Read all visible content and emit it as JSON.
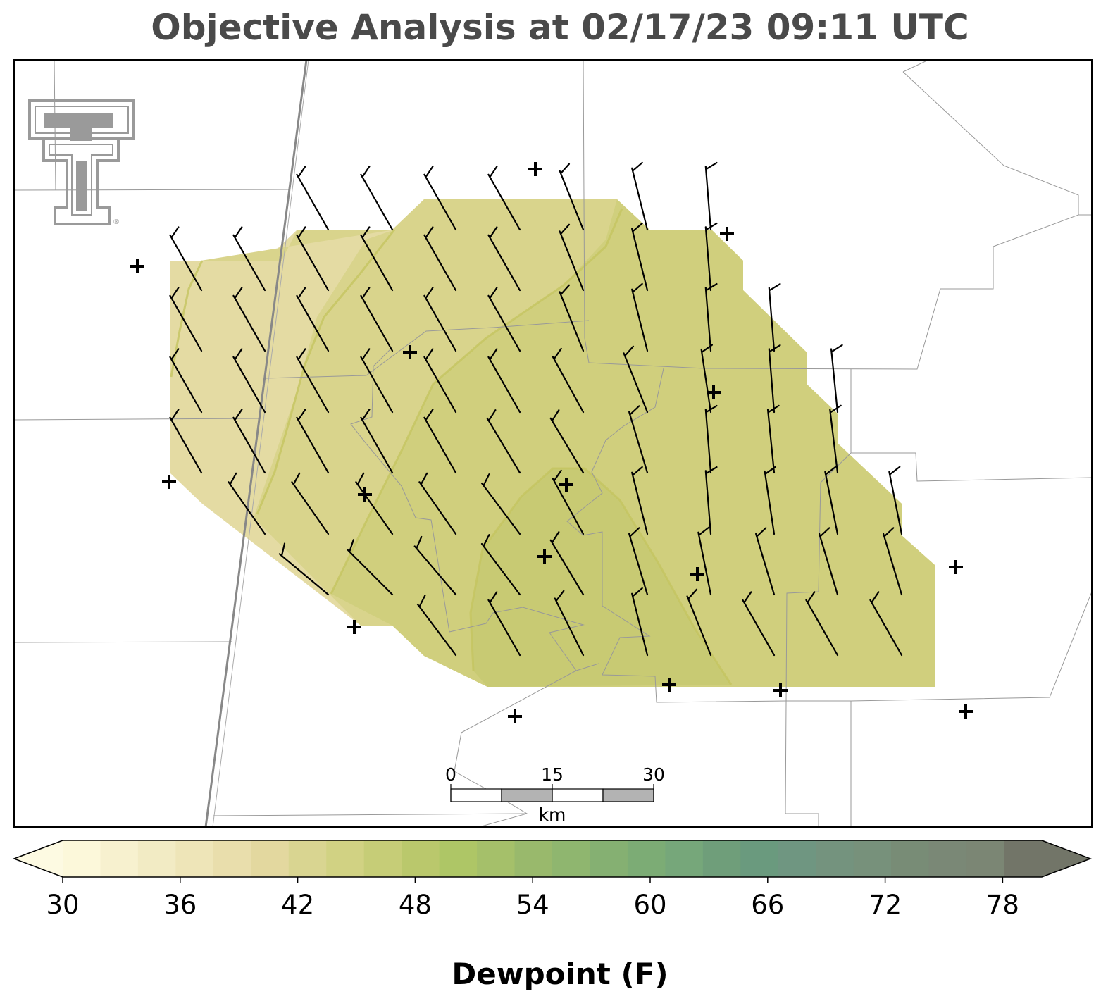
{
  "title": "Objective Analysis at 02/17/23 09:11 UTC",
  "colorbar": {
    "label": "Dewpoint (F)",
    "ticks": [
      "30",
      "36",
      "42",
      "48",
      "54",
      "60",
      "66",
      "72",
      "78"
    ],
    "min": 30,
    "max": 80,
    "colors": [
      "#fcf8da",
      "#f7f1cf",
      "#f2ebc4",
      "#eee5b8",
      "#e9deac",
      "#e3d89f",
      "#d9d591",
      "#d1d283",
      "#c6cd77",
      "#bac86c",
      "#aec666",
      "#a5c06a",
      "#99b96c",
      "#8fb66f",
      "#85b072",
      "#7cac75",
      "#76a77a",
      "#6f9e7a",
      "#6a9a7e",
      "#6f9681",
      "#74937e",
      "#77917b",
      "#788c76",
      "#7a8876",
      "#7b8674",
      "#727568"
    ]
  },
  "scale_bar": {
    "labels": [
      "0",
      "15",
      "30"
    ],
    "unit": "km"
  },
  "logo": {
    "name": "Texas Tech double-T logo",
    "text": "®"
  },
  "colors": {
    "title": "#4a4a4a",
    "field_low": "#e4dba3",
    "field_mid": "#d6d286",
    "field_high": "#cccd78",
    "contour": "#c4c460",
    "boundary": "#999999",
    "highway": "#888888"
  },
  "stations": [
    [
      195,
      378
    ],
    [
      760,
      240
    ],
    [
      1032,
      332
    ],
    [
      582,
      500
    ],
    [
      1013,
      557
    ],
    [
      240,
      684
    ],
    [
      518,
      702
    ],
    [
      804,
      688
    ],
    [
      773,
      790
    ],
    [
      990,
      815
    ],
    [
      503,
      890
    ],
    [
      1357,
      805
    ],
    [
      950,
      972
    ],
    [
      1108,
      980
    ],
    [
      731,
      1017
    ],
    [
      1371,
      1010
    ]
  ],
  "wind_barbs": [
    {
      "row_y": 326,
      "cols": [
        [
          466,
          -0.57
        ],
        [
          557,
          -0.57
        ],
        [
          647,
          -0.57
        ],
        [
          738,
          -0.57
        ],
        [
          828,
          -0.4
        ],
        [
          919,
          -0.25
        ],
        [
          1009,
          -0.08
        ]
      ]
    },
    {
      "row_y": 412,
      "cols": [
        [
          286,
          -0.57
        ],
        [
          376,
          -0.57
        ],
        [
          466,
          -0.57
        ],
        [
          557,
          -0.57
        ],
        [
          647,
          -0.57
        ],
        [
          738,
          -0.57
        ],
        [
          828,
          -0.4
        ],
        [
          919,
          -0.25
        ],
        [
          1009,
          -0.08
        ]
      ]
    },
    {
      "row_y": 498,
      "cols": [
        [
          286,
          -0.57
        ],
        [
          376,
          -0.57
        ],
        [
          466,
          -0.57
        ],
        [
          557,
          -0.57
        ],
        [
          647,
          -0.57
        ],
        [
          738,
          -0.57
        ],
        [
          828,
          -0.4
        ],
        [
          919,
          -0.25
        ],
        [
          1009,
          -0.08
        ],
        [
          1099,
          -0.08
        ]
      ]
    },
    {
      "row_y": 585,
      "cols": [
        [
          286,
          -0.57
        ],
        [
          376,
          -0.57
        ],
        [
          466,
          -0.57
        ],
        [
          557,
          -0.57
        ],
        [
          647,
          -0.57
        ],
        [
          738,
          -0.57
        ],
        [
          828,
          -0.55
        ],
        [
          919,
          -0.4
        ],
        [
          1009,
          -0.15
        ],
        [
          1099,
          -0.08
        ],
        [
          1189,
          -0.1
        ]
      ]
    },
    {
      "row_y": 671,
      "cols": [
        [
          286,
          -0.57
        ],
        [
          376,
          -0.57
        ],
        [
          466,
          -0.57
        ],
        [
          557,
          -0.57
        ],
        [
          647,
          -0.57
        ],
        [
          738,
          -0.6
        ],
        [
          828,
          -0.6
        ],
        [
          919,
          -0.3
        ],
        [
          1009,
          -0.08
        ],
        [
          1099,
          -0.1
        ],
        [
          1189,
          -0.12
        ]
      ]
    },
    {
      "row_y": 758,
      "cols": [
        [
          376,
          -0.7
        ],
        [
          466,
          -0.7
        ],
        [
          557,
          -0.7
        ],
        [
          647,
          -0.7
        ],
        [
          738,
          -0.75
        ],
        [
          828,
          -0.55
        ],
        [
          919,
          -0.25
        ],
        [
          1009,
          -0.08
        ],
        [
          1099,
          -0.15
        ],
        [
          1189,
          -0.2
        ],
        [
          1280,
          -0.2
        ]
      ]
    },
    {
      "row_y": 844,
      "cols": [
        [
          466,
          -1.2
        ],
        [
          557,
          -1.0
        ],
        [
          647,
          -0.85
        ],
        [
          738,
          -0.75
        ],
        [
          828,
          -0.6
        ],
        [
          919,
          -0.3
        ],
        [
          1009,
          -0.2
        ],
        [
          1099,
          -0.3
        ],
        [
          1189,
          -0.3
        ],
        [
          1280,
          -0.3
        ]
      ]
    },
    {
      "row_y": 930,
      "cols": [
        [
          647,
          -0.75
        ],
        [
          738,
          -0.57
        ],
        [
          828,
          -0.5
        ],
        [
          919,
          -0.25
        ],
        [
          1009,
          -0.4
        ],
        [
          1099,
          -0.57
        ],
        [
          1189,
          -0.57
        ],
        [
          1280,
          -0.57
        ]
      ]
    }
  ]
}
